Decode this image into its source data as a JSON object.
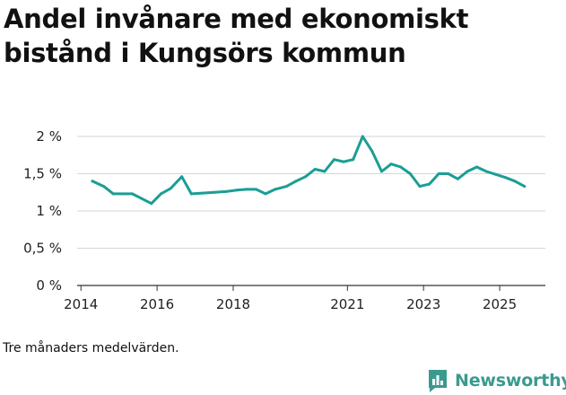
{
  "title": "Andel invånare med ekonomiskt bistånd i Kungsörs kommun",
  "footnote": "Tre månaders medelvärden.",
  "brand": {
    "name": "Newsworthy",
    "logo_icon": "bar-chart-speech-bubble-icon",
    "color": "#3b9a8f"
  },
  "chart_data": {
    "type": "line",
    "title": "Andel invånare med ekonomiskt bistånd i Kungsörs kommun",
    "xlabel": "",
    "ylabel": "",
    "ylim": [
      0,
      2
    ],
    "xlim": [
      2013.9,
      2026.2
    ],
    "grid": true,
    "line_color": "#1a9e95",
    "y_ticks": [
      {
        "value": 0,
        "label": "0 %"
      },
      {
        "value": 0.5,
        "label": "0,5 %"
      },
      {
        "value": 1,
        "label": "1 %"
      },
      {
        "value": 1.5,
        "label": "1,5 %"
      },
      {
        "value": 2,
        "label": "2 %"
      }
    ],
    "x_ticks": [
      {
        "value": 2014,
        "label": "2014"
      },
      {
        "value": 2016,
        "label": "2016"
      },
      {
        "value": 2018,
        "label": "2018"
      },
      {
        "value": 2021,
        "label": "2021"
      },
      {
        "value": 2023,
        "label": "2023"
      },
      {
        "value": 2025,
        "label": "2025"
      }
    ],
    "series": [
      {
        "name": "Andel invånare med ekonomiskt bistånd",
        "x": [
          2014.3,
          2014.6,
          2014.85,
          2015.1,
          2015.35,
          2015.85,
          2016.1,
          2016.35,
          2016.65,
          2016.9,
          2017.2,
          2017.5,
          2017.8,
          2018.1,
          2018.35,
          2018.6,
          2018.85,
          2019.1,
          2019.4,
          2019.65,
          2019.9,
          2020.15,
          2020.4,
          2020.65,
          2020.9,
          2021.15,
          2021.4,
          2021.65,
          2021.9,
          2022.15,
          2022.4,
          2022.65,
          2022.9,
          2023.15,
          2023.4,
          2023.65,
          2023.9,
          2024.15,
          2024.4,
          2024.65,
          2024.9,
          2025.15,
          2025.4,
          2025.65
        ],
        "values": [
          1.4,
          1.33,
          1.23,
          1.23,
          1.23,
          1.1,
          1.23,
          1.3,
          1.46,
          1.23,
          1.24,
          1.25,
          1.26,
          1.28,
          1.29,
          1.29,
          1.23,
          1.29,
          1.33,
          1.4,
          1.46,
          1.56,
          1.53,
          1.69,
          1.66,
          1.69,
          2.0,
          1.8,
          1.53,
          1.63,
          1.59,
          1.5,
          1.33,
          1.36,
          1.5,
          1.5,
          1.43,
          1.53,
          1.59,
          1.53,
          1.49,
          1.45,
          1.4,
          1.33
        ]
      }
    ]
  }
}
